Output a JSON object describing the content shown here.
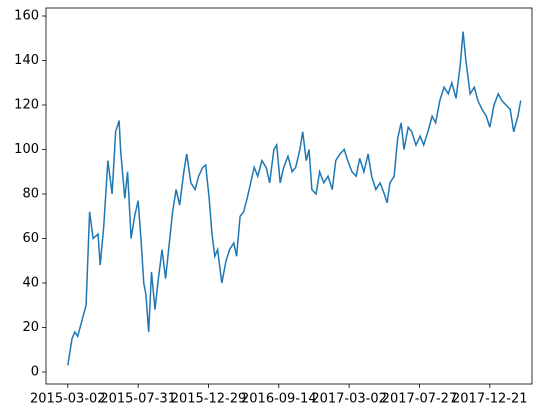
{
  "chart_data": {
    "type": "line",
    "color": "#1f77b4",
    "x": [
      0,
      6,
      10,
      14,
      20,
      26,
      31,
      36,
      43,
      46,
      51,
      57,
      63,
      68,
      73,
      75,
      81,
      85,
      90,
      95,
      100,
      104,
      108,
      111,
      115,
      119,
      124,
      128,
      134,
      139,
      145,
      149,
      154,
      159,
      165,
      169,
      175,
      181,
      186,
      192,
      196,
      201,
      205,
      209,
      213,
      219,
      225,
      230,
      236,
      240,
      245,
      250,
      255,
      260,
      265,
      270,
      276,
      282,
      287,
      293,
      297,
      302,
      307,
      313,
      319,
      324,
      330,
      334,
      339,
      343,
      347,
      353,
      358,
      364,
      370,
      376,
      381,
      387,
      393,
      398,
      404,
      410,
      415,
      421,
      427,
      432,
      438,
      444,
      450,
      454,
      458,
      464,
      469,
      474,
      478,
      484,
      489,
      495,
      501,
      506,
      512,
      518,
      523,
      529,
      535,
      541,
      546,
      552,
      558,
      562,
      566,
      572,
      578,
      583,
      589,
      595,
      600,
      606,
      612,
      617,
      623,
      629,
      634,
      640,
      644
    ],
    "values": [
      3,
      15,
      18,
      16,
      23,
      30,
      72,
      60,
      62,
      48,
      65,
      95,
      80,
      108,
      113,
      100,
      78,
      90,
      60,
      70,
      77,
      60,
      40,
      35,
      18,
      45,
      28,
      40,
      55,
      42,
      60,
      72,
      82,
      75,
      90,
      98,
      85,
      82,
      88,
      92,
      93,
      78,
      62,
      52,
      55,
      40,
      50,
      55,
      58,
      52,
      70,
      72,
      78,
      85,
      92,
      88,
      95,
      92,
      85,
      100,
      102,
      85,
      92,
      97,
      90,
      92,
      100,
      108,
      95,
      100,
      82,
      80,
      90,
      85,
      88,
      82,
      95,
      98,
      100,
      95,
      90,
      88,
      96,
      90,
      98,
      88,
      82,
      85,
      80,
      76,
      85,
      88,
      105,
      112,
      100,
      110,
      108,
      102,
      106,
      102,
      108,
      115,
      112,
      122,
      128,
      125,
      130,
      123,
      138,
      153,
      140,
      125,
      128,
      122,
      118,
      115,
      110,
      120,
      125,
      122,
      120,
      118,
      108,
      115,
      122
    ],
    "xlim": [
      -31,
      660
    ],
    "ylim": [
      -5.4,
      163.6
    ],
    "xticks": [
      {
        "value": 0,
        "label": "2015-03-02"
      },
      {
        "value": 100,
        "label": "2015-07-31"
      },
      {
        "value": 200,
        "label": "2015-12-29"
      },
      {
        "value": 300,
        "label": "2016-09-14"
      },
      {
        "value": 400,
        "label": "2017-03-02"
      },
      {
        "value": 500,
        "label": "2017-07-27"
      },
      {
        "value": 600,
        "label": "2017-12-21"
      }
    ],
    "yticks": [
      0,
      20,
      40,
      60,
      80,
      100,
      120,
      140,
      160
    ]
  }
}
